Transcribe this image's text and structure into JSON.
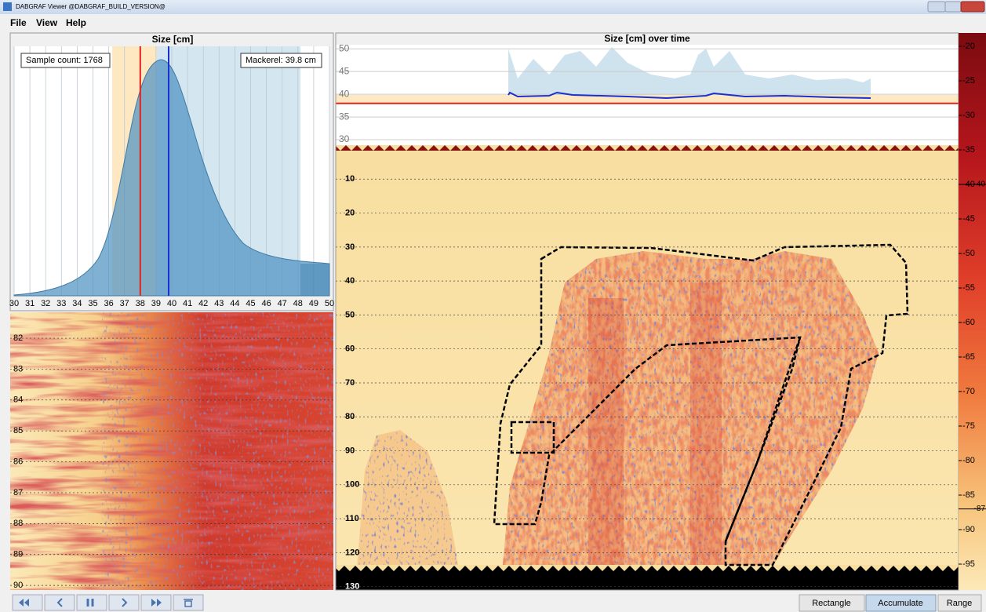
{
  "window": {
    "title": "DABGRAF Viewer @DABGRAF_BUILD_VERSION@"
  },
  "menu": [
    "File",
    "View",
    "Help"
  ],
  "size_panel": {
    "title": "Size [cm]",
    "sample_count_label": "Sample count: 1768",
    "species_label": "Mackerel: 39.8 cm",
    "xlim": [
      30,
      50
    ],
    "xticks": [
      30,
      31,
      32,
      33,
      34,
      35,
      36,
      37,
      38,
      39,
      40,
      41,
      42,
      43,
      44,
      45,
      46,
      47,
      48,
      49,
      50
    ],
    "red_marker": 38,
    "blue_marker": 39.8
  },
  "ping_echogram": {
    "ylim": [
      81.16,
      90.15
    ],
    "yticks": [
      82,
      83,
      84,
      85,
      86,
      87,
      88,
      89,
      90
    ]
  },
  "time_panel": {
    "title": "Size [cm] over time",
    "ylim": [
      28.8,
      50.9
    ],
    "yticks": [
      50,
      45,
      40,
      35,
      30
    ],
    "red_marker": 38
  },
  "echogram": {
    "depth_lim": [
      0,
      131
    ],
    "depth_ticks": [
      10,
      20,
      30,
      40,
      50,
      60,
      70,
      80,
      90,
      100,
      110,
      120,
      130
    ]
  },
  "colorbar": {
    "lim": [
      -18.07,
      -98.75
    ],
    "ticks": [
      -20,
      -25,
      -30,
      -35,
      -40,
      -45,
      -50,
      -55,
      -60,
      -65,
      -70,
      -75,
      -80,
      -85,
      -90,
      -95
    ],
    "markers": [
      -40,
      -87
    ]
  },
  "buttons": [
    "Rectangle",
    "Accumulate",
    "Range"
  ]
}
